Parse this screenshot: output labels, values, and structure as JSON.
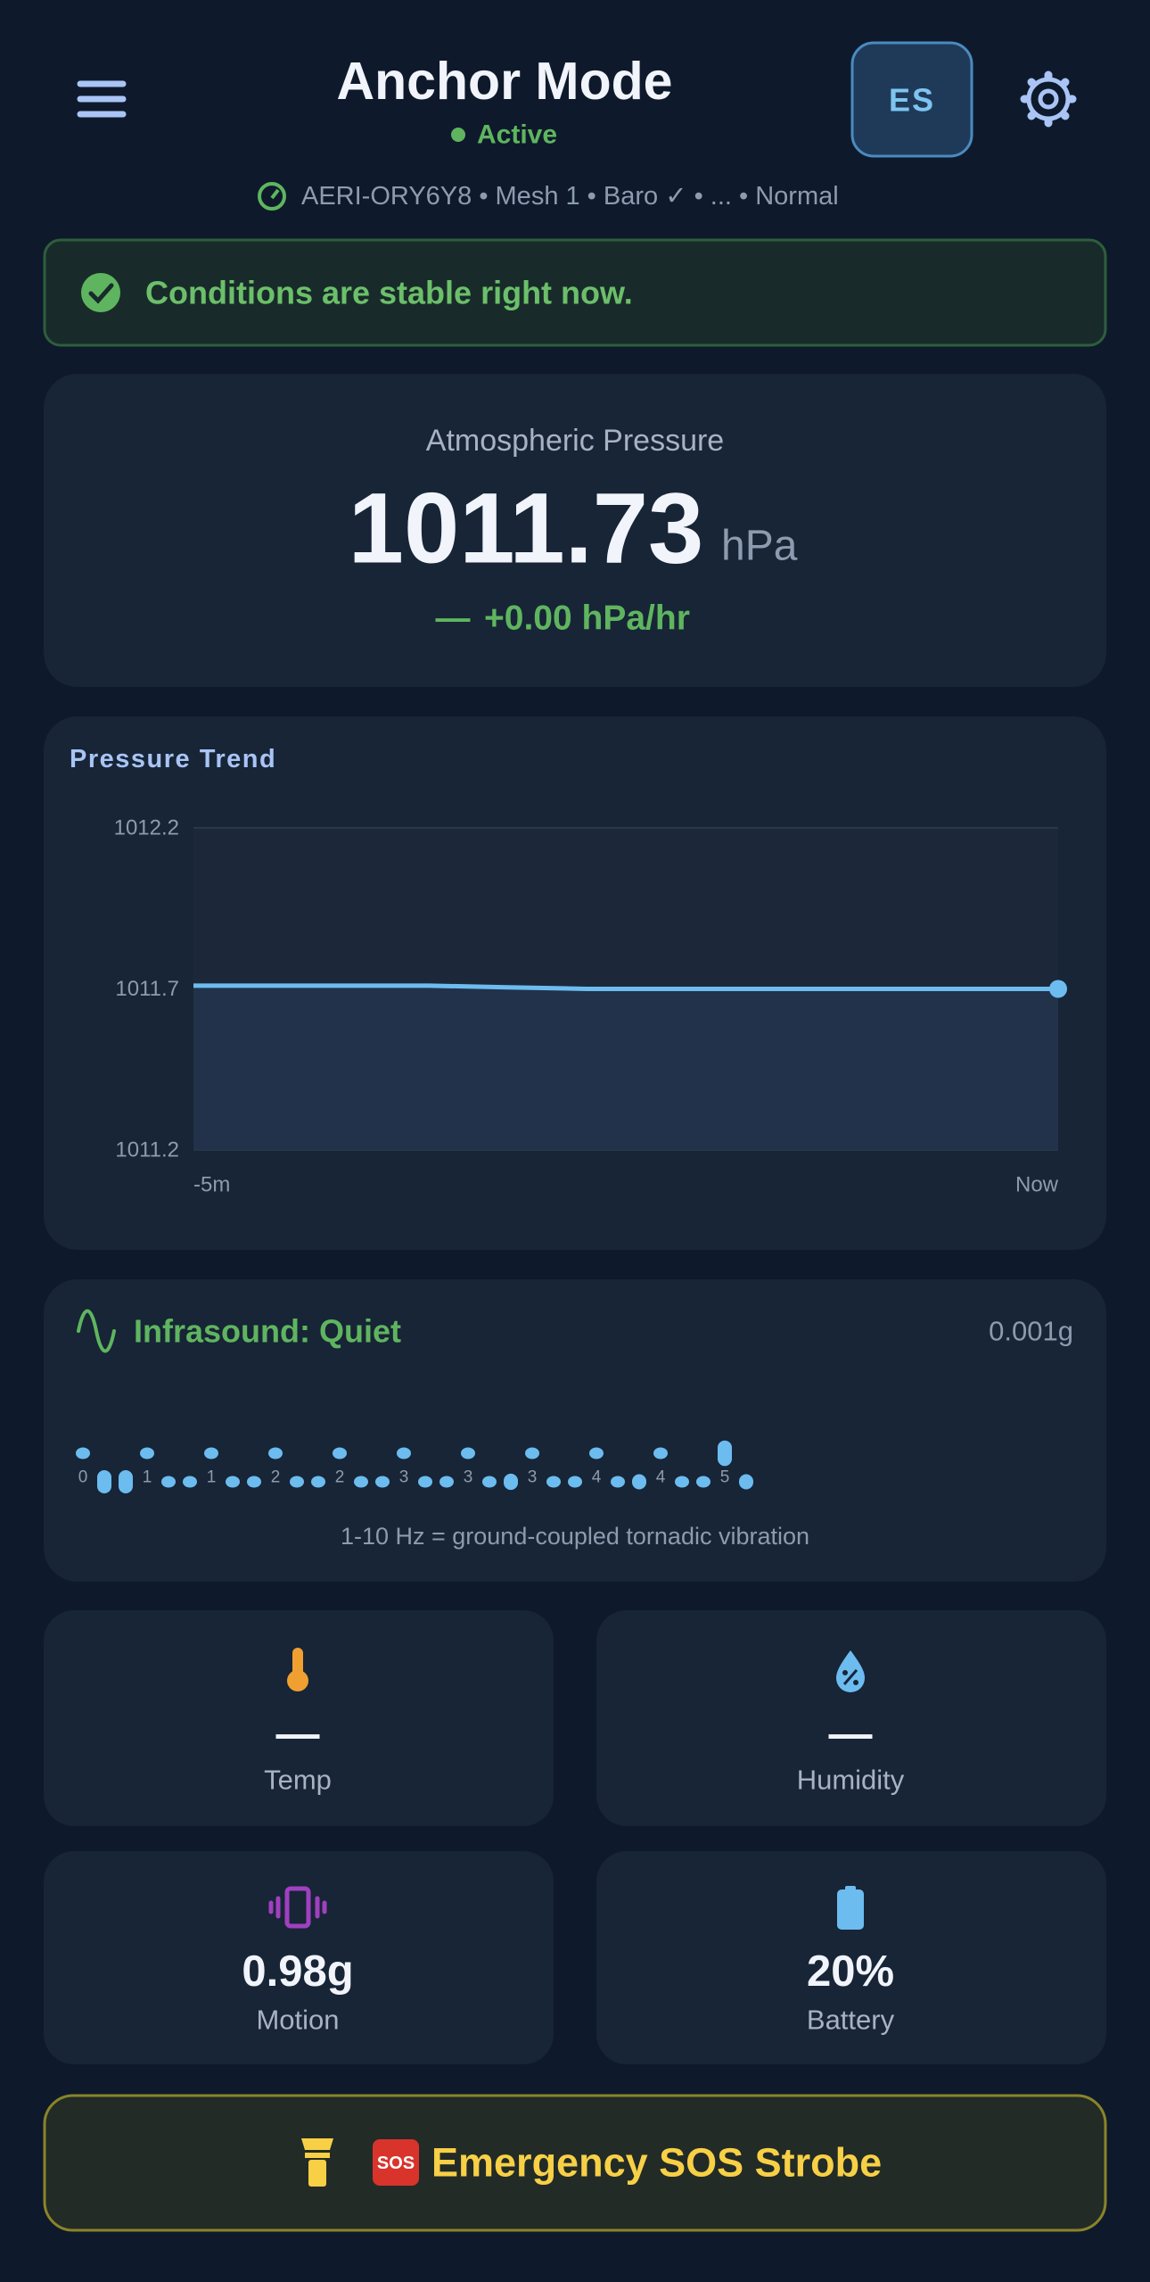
{
  "header": {
    "title": "Anchor Mode",
    "status": "Active",
    "language_button": "ES",
    "device_line": "AERI-ORY6Y8 • Mesh 1 • Baro ✓ • ... • Normal"
  },
  "alert": {
    "text": "Conditions are stable right now."
  },
  "pressure": {
    "label": "Atmospheric Pressure",
    "value": "1011.73",
    "unit": "hPa",
    "trend_icon": "—",
    "trend": "+0.00 hPa/hr"
  },
  "pressure_trend": {
    "title": "Pressure Trend",
    "ylim": [
      1011.2,
      1012.2
    ],
    "yticks": [
      1011.2,
      1011.7,
      1012.2
    ],
    "x_labels": [
      "-5m",
      "Now"
    ],
    "color": "#6cbcf0",
    "values": [
      1011.71,
      1011.71,
      1011.71,
      1011.71,
      1011.705,
      1011.7,
      1011.7,
      1011.7,
      1011.7,
      1011.7,
      1011.7,
      1011.7
    ]
  },
  "infrasound": {
    "title": "Infrasound: Quiet",
    "peak": "0.001g",
    "caption": "1-10 Hz = ground-coupled tornadic vibration",
    "color": "#6cbcf0",
    "labels": [
      "0",
      null,
      null,
      "1",
      null,
      null,
      "1",
      null,
      null,
      "2",
      null,
      null,
      "2",
      null,
      null,
      "3",
      null,
      null,
      "3",
      null,
      null,
      "3",
      null,
      null,
      "4",
      null,
      null,
      "4",
      null,
      null,
      "5",
      null
    ],
    "values": [
      1,
      2,
      2,
      1,
      1,
      1,
      1,
      1,
      1,
      1,
      1,
      1,
      1,
      1,
      1,
      1,
      1,
      1,
      1,
      1,
      1.4,
      1,
      1,
      1,
      1,
      1,
      1.3,
      1,
      1,
      1,
      2.2,
      1.3
    ]
  },
  "tiles": [
    {
      "label": "Temp",
      "value": "—"
    },
    {
      "label": "Humidity",
      "value": "—"
    },
    {
      "label": "Motion",
      "value": "0.98g"
    },
    {
      "label": "Battery",
      "value": "20%"
    }
  ],
  "sos": {
    "badge": "SOS",
    "label": "Emergency SOS Strobe"
  }
}
